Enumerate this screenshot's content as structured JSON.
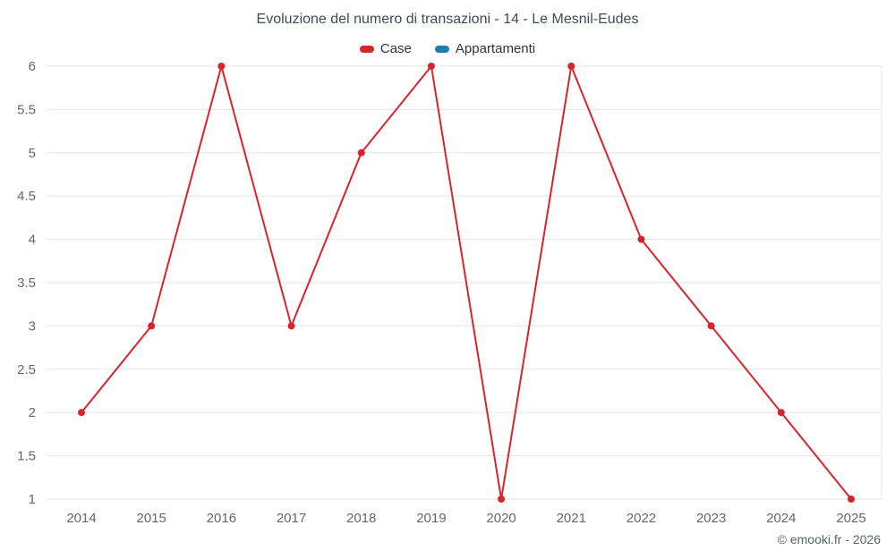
{
  "chart": {
    "title": "Evoluzione del numero di transazioni - 14 - Le Mesnil-Eudes",
    "legend": [
      {
        "label": "Case",
        "color": "#d9232d"
      },
      {
        "label": "Appartamenti",
        "color": "#1f7ea9"
      }
    ]
  },
  "footer": {
    "copyright": "© emooki.fr - 2026"
  },
  "chart_data": {
    "type": "line",
    "title": "Evoluzione del numero di transazioni - 14 - Le Mesnil-Eudes",
    "categories": [
      "2014",
      "2015",
      "2016",
      "2017",
      "2018",
      "2019",
      "2020",
      "2021",
      "2022",
      "2023",
      "2024",
      "2025"
    ],
    "series": [
      {
        "name": "Case",
        "color": "#d9232d",
        "values": [
          2,
          3,
          6,
          3,
          5,
          6,
          1,
          6,
          4,
          3,
          2,
          1
        ]
      },
      {
        "name": "Appartamenti",
        "color": "#1f7ea9",
        "values": []
      }
    ],
    "xlabel": "",
    "ylabel": "",
    "ylim": [
      1,
      6
    ],
    "ytick_step": 0.5,
    "grid": "horizontal",
    "gridline_color": "#e6e6e6",
    "tick_label_color": "#666666",
    "legend_position": "top"
  }
}
